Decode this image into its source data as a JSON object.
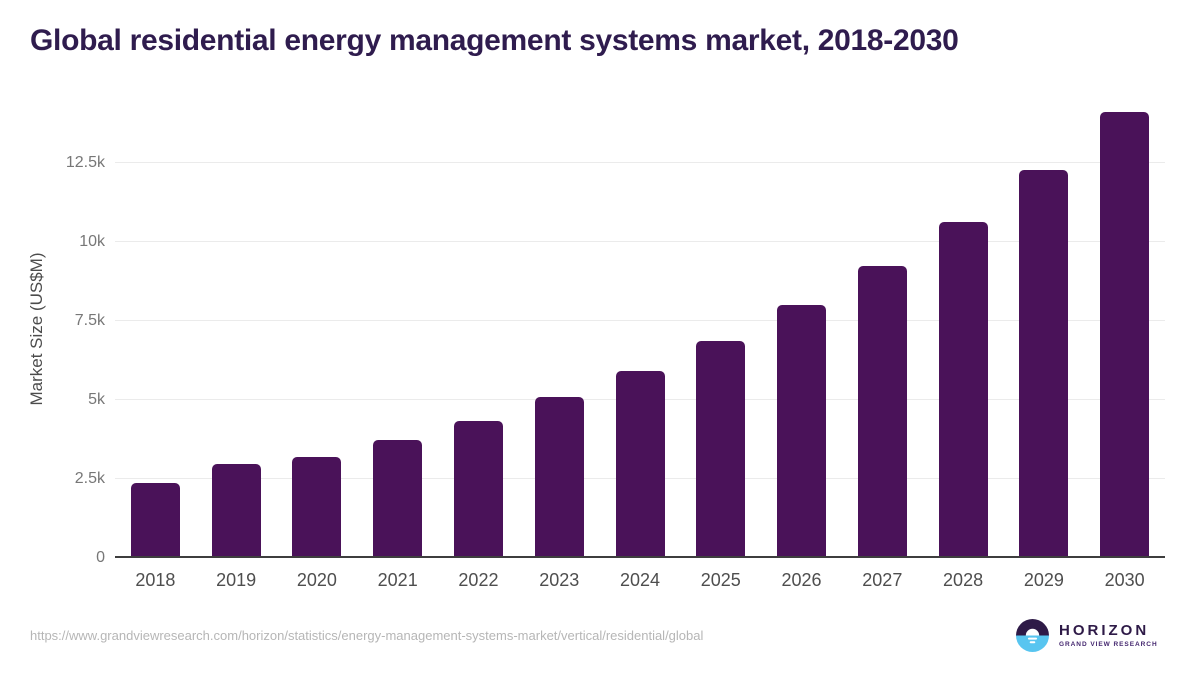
{
  "header": {
    "title": "Global residential energy management systems market, 2018-2030",
    "title_color": "#2f1c4e"
  },
  "chart_data": {
    "type": "bar",
    "title": "Global residential energy management systems market, 2018-2030",
    "xlabel": "",
    "ylabel": "Market Size (US$M)",
    "categories": [
      "2018",
      "2019",
      "2020",
      "2021",
      "2022",
      "2023",
      "2024",
      "2025",
      "2026",
      "2027",
      "2028",
      "2029",
      "2030"
    ],
    "values": [
      2370,
      2970,
      3190,
      3730,
      4330,
      5100,
      5920,
      6870,
      8000,
      9250,
      10650,
      12280,
      14120
    ],
    "ylim": [
      0,
      14500
    ],
    "yticks": [
      {
        "value": 0,
        "label": "0"
      },
      {
        "value": 2500,
        "label": "2.5k"
      },
      {
        "value": 5000,
        "label": "5k"
      },
      {
        "value": 7500,
        "label": "7.5k"
      },
      {
        "value": 10000,
        "label": "10k"
      },
      {
        "value": 12500,
        "label": "12.5k"
      }
    ],
    "bar_color": "#4a1259",
    "grid": true,
    "legend": false
  },
  "footer": {
    "source_url": "https://www.grandviewresearch.com/horizon/statistics/energy-management-systems-market/vertical/residential/global",
    "logo": {
      "title": "HORIZON",
      "subtitle": "GRAND VIEW RESEARCH",
      "icon": "horizon-sun-icon",
      "colors": {
        "circle_top": "#2e1a47",
        "circle_bottom": "#58c5f0",
        "text": "#2e1a47"
      }
    }
  }
}
